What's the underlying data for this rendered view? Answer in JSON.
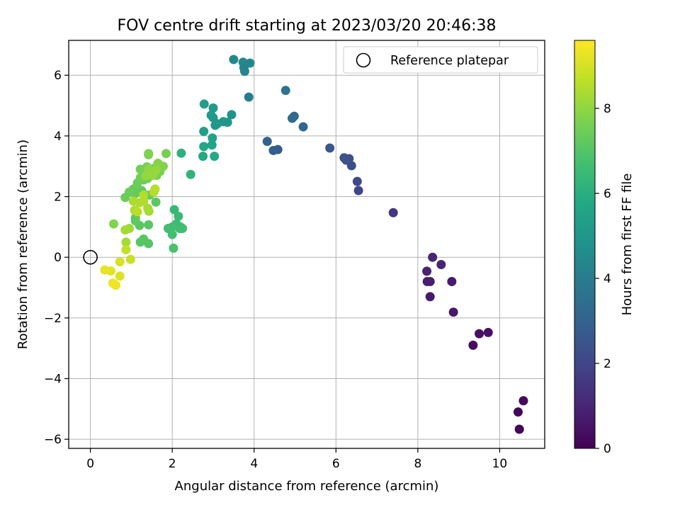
{
  "chart_data": {
    "type": "scatter",
    "title": "FOV centre drift starting at 2023/03/20 20:46:38",
    "xlabel": "Angular distance from reference (arcmin)",
    "ylabel": "Rotation from reference (arcmin)",
    "xlim": [
      -0.53,
      11.1
    ],
    "ylim": [
      -6.3,
      7.15
    ],
    "xticks": [
      0,
      2,
      4,
      6,
      8,
      10
    ],
    "xtick_labels": [
      "0",
      "2",
      "4",
      "6",
      "8",
      "10"
    ],
    "yticks": [
      -6,
      -4,
      -2,
      0,
      2,
      4,
      6
    ],
    "ytick_labels": [
      "−6",
      "−4",
      "−2",
      "0",
      "2",
      "4",
      "6"
    ],
    "grid": true,
    "legend": {
      "placement": "top-right",
      "entries": [
        "Reference platepar"
      ]
    },
    "reference_point": {
      "name": "Reference platepar",
      "x": 0,
      "y": 0,
      "marker": "open-circle"
    },
    "colorbar": {
      "label": "Hours from first FF file",
      "range": [
        0,
        9.6
      ],
      "ticks": [
        0,
        2,
        4,
        6,
        8
      ],
      "tick_labels": [
        "0",
        "2",
        "4",
        "6",
        "8"
      ],
      "colormap": "viridis"
    },
    "series": [
      {
        "color_by": "hours",
        "points": [
          {
            "x": 10.48,
            "y": -5.67,
            "c": 0.1
          },
          {
            "x": 10.45,
            "y": -5.1,
            "c": 0.15
          },
          {
            "x": 10.58,
            "y": -4.73,
            "c": 0.2
          },
          {
            "x": 9.35,
            "y": -2.9,
            "c": 0.35
          },
          {
            "x": 9.5,
            "y": -2.52,
            "c": 0.4
          },
          {
            "x": 9.72,
            "y": -2.48,
            "c": 0.45
          },
          {
            "x": 8.87,
            "y": -1.81,
            "c": 0.6
          },
          {
            "x": 8.3,
            "y": -1.3,
            "c": 0.7
          },
          {
            "x": 8.23,
            "y": -0.8,
            "c": 0.8
          },
          {
            "x": 8.3,
            "y": -0.8,
            "c": 0.8
          },
          {
            "x": 8.83,
            "y": -0.8,
            "c": 0.75
          },
          {
            "x": 8.22,
            "y": -0.46,
            "c": 0.9
          },
          {
            "x": 8.57,
            "y": -0.24,
            "c": 0.95
          },
          {
            "x": 8.36,
            "y": 0.0,
            "c": 1.0
          },
          {
            "x": 7.4,
            "y": 1.47,
            "c": 1.5
          },
          {
            "x": 6.55,
            "y": 2.2,
            "c": 2.0
          },
          {
            "x": 6.52,
            "y": 2.5,
            "c": 2.1
          },
          {
            "x": 6.38,
            "y": 3.02,
            "c": 2.2
          },
          {
            "x": 6.32,
            "y": 3.25,
            "c": 2.3
          },
          {
            "x": 6.2,
            "y": 3.28,
            "c": 2.35
          },
          {
            "x": 6.25,
            "y": 3.2,
            "c": 2.4
          },
          {
            "x": 5.85,
            "y": 3.6,
            "c": 2.6
          },
          {
            "x": 4.58,
            "y": 3.55,
            "c": 2.8
          },
          {
            "x": 4.47,
            "y": 3.52,
            "c": 2.9
          },
          {
            "x": 4.32,
            "y": 3.82,
            "c": 3.0
          },
          {
            "x": 5.2,
            "y": 4.3,
            "c": 3.2
          },
          {
            "x": 4.98,
            "y": 4.65,
            "c": 3.3
          },
          {
            "x": 4.93,
            "y": 4.58,
            "c": 3.35
          },
          {
            "x": 4.77,
            "y": 5.5,
            "c": 3.6
          },
          {
            "x": 3.87,
            "y": 5.28,
            "c": 4.0
          },
          {
            "x": 3.77,
            "y": 6.13,
            "c": 4.3
          },
          {
            "x": 3.75,
            "y": 6.25,
            "c": 4.35
          },
          {
            "x": 3.73,
            "y": 6.43,
            "c": 4.4
          },
          {
            "x": 3.9,
            "y": 6.4,
            "c": 4.4
          },
          {
            "x": 3.5,
            "y": 6.52,
            "c": 4.5
          },
          {
            "x": 3.45,
            "y": 4.7,
            "c": 4.9
          },
          {
            "x": 3.35,
            "y": 4.45,
            "c": 5.0
          },
          {
            "x": 3.25,
            "y": 4.47,
            "c": 5.05
          },
          {
            "x": 3.1,
            "y": 4.4,
            "c": 5.1
          },
          {
            "x": 3.05,
            "y": 4.35,
            "c": 5.1
          },
          {
            "x": 3.0,
            "y": 4.6,
            "c": 5.15
          },
          {
            "x": 2.95,
            "y": 4.68,
            "c": 5.2
          },
          {
            "x": 3.0,
            "y": 4.92,
            "c": 5.2
          },
          {
            "x": 2.78,
            "y": 5.05,
            "c": 5.25
          },
          {
            "x": 2.77,
            "y": 4.15,
            "c": 5.4
          },
          {
            "x": 2.98,
            "y": 3.93,
            "c": 5.5
          },
          {
            "x": 2.97,
            "y": 3.7,
            "c": 5.6
          },
          {
            "x": 2.77,
            "y": 3.65,
            "c": 5.7
          },
          {
            "x": 2.75,
            "y": 3.33,
            "c": 5.8
          },
          {
            "x": 3.03,
            "y": 3.33,
            "c": 5.8
          },
          {
            "x": 2.22,
            "y": 3.43,
            "c": 6.1
          },
          {
            "x": 2.45,
            "y": 2.73,
            "c": 6.2
          },
          {
            "x": 2.05,
            "y": 1.57,
            "c": 6.4
          },
          {
            "x": 2.15,
            "y": 1.35,
            "c": 6.5
          },
          {
            "x": 2.1,
            "y": 1.1,
            "c": 6.5
          },
          {
            "x": 2.2,
            "y": 1.0,
            "c": 6.55
          },
          {
            "x": 2.25,
            "y": 0.95,
            "c": 6.6
          },
          {
            "x": 2.18,
            "y": 0.95,
            "c": 6.6
          },
          {
            "x": 2.0,
            "y": 1.0,
            "c": 6.65
          },
          {
            "x": 1.9,
            "y": 0.95,
            "c": 6.65
          },
          {
            "x": 2.0,
            "y": 0.75,
            "c": 6.7
          },
          {
            "x": 2.03,
            "y": 0.3,
            "c": 6.8
          },
          {
            "x": 1.42,
            "y": 0.45,
            "c": 7.0
          },
          {
            "x": 1.22,
            "y": 0.5,
            "c": 7.05
          },
          {
            "x": 1.3,
            "y": 0.6,
            "c": 7.1
          },
          {
            "x": 1.42,
            "y": 1.07,
            "c": 7.1
          },
          {
            "x": 1.2,
            "y": 1.05,
            "c": 7.15
          },
          {
            "x": 1.1,
            "y": 1.2,
            "c": 7.2
          },
          {
            "x": 1.1,
            "y": 1.3,
            "c": 7.2
          },
          {
            "x": 1.6,
            "y": 1.82,
            "c": 7.15
          },
          {
            "x": 1.45,
            "y": 2.05,
            "c": 7.3
          },
          {
            "x": 1.35,
            "y": 2.05,
            "c": 7.3
          },
          {
            "x": 1.25,
            "y": 2.2,
            "c": 7.25
          },
          {
            "x": 1.1,
            "y": 2.1,
            "c": 7.35
          },
          {
            "x": 1.05,
            "y": 2.25,
            "c": 7.35
          },
          {
            "x": 0.95,
            "y": 2.15,
            "c": 7.4
          },
          {
            "x": 0.85,
            "y": 1.97,
            "c": 7.4
          },
          {
            "x": 1.15,
            "y": 2.45,
            "c": 7.4
          },
          {
            "x": 1.3,
            "y": 2.55,
            "c": 7.45
          },
          {
            "x": 1.22,
            "y": 2.62,
            "c": 7.5
          },
          {
            "x": 1.4,
            "y": 2.6,
            "c": 7.5
          },
          {
            "x": 1.45,
            "y": 2.75,
            "c": 7.5
          },
          {
            "x": 1.22,
            "y": 2.9,
            "c": 7.55
          },
          {
            "x": 1.38,
            "y": 2.98,
            "c": 7.55
          },
          {
            "x": 1.55,
            "y": 2.93,
            "c": 7.6
          },
          {
            "x": 1.62,
            "y": 2.7,
            "c": 7.6
          },
          {
            "x": 1.7,
            "y": 2.83,
            "c": 7.65
          },
          {
            "x": 1.85,
            "y": 3.42,
            "c": 7.65
          },
          {
            "x": 1.42,
            "y": 3.38,
            "c": 7.7
          },
          {
            "x": 1.42,
            "y": 3.42,
            "c": 7.75
          },
          {
            "x": 1.78,
            "y": 3.0,
            "c": 7.8
          },
          {
            "x": 1.65,
            "y": 3.1,
            "c": 7.85
          },
          {
            "x": 1.55,
            "y": 2.8,
            "c": 7.9
          },
          {
            "x": 1.48,
            "y": 2.78,
            "c": 8.0
          },
          {
            "x": 1.42,
            "y": 2.9,
            "c": 8.0
          },
          {
            "x": 1.35,
            "y": 2.68,
            "c": 8.05
          },
          {
            "x": 1.52,
            "y": 2.7,
            "c": 8.1
          },
          {
            "x": 1.6,
            "y": 2.88,
            "c": 8.1
          },
          {
            "x": 0.57,
            "y": 1.1,
            "c": 7.8
          },
          {
            "x": 0.95,
            "y": 0.95,
            "c": 8.2
          },
          {
            "x": 0.85,
            "y": 0.9,
            "c": 8.3
          },
          {
            "x": 0.87,
            "y": 0.5,
            "c": 8.3
          },
          {
            "x": 1.08,
            "y": 1.55,
            "c": 8.4
          },
          {
            "x": 1.43,
            "y": 1.52,
            "c": 8.3
          },
          {
            "x": 1.4,
            "y": 1.62,
            "c": 8.35
          },
          {
            "x": 1.2,
            "y": 1.8,
            "c": 8.4
          },
          {
            "x": 1.05,
            "y": 1.85,
            "c": 8.4
          },
          {
            "x": 1.3,
            "y": 1.85,
            "c": 8.45
          },
          {
            "x": 1.3,
            "y": 2.05,
            "c": 8.5
          },
          {
            "x": 1.55,
            "y": 2.15,
            "c": 8.5
          },
          {
            "x": 1.58,
            "y": 2.25,
            "c": 8.55
          },
          {
            "x": 1.15,
            "y": 1.5,
            "c": 8.6
          },
          {
            "x": 0.87,
            "y": 0.25,
            "c": 8.7
          },
          {
            "x": 0.98,
            "y": -0.07,
            "c": 8.8
          },
          {
            "x": 0.72,
            "y": -0.15,
            "c": 9.0
          },
          {
            "x": 0.72,
            "y": -0.62,
            "c": 9.1
          },
          {
            "x": 0.5,
            "y": -0.45,
            "c": 9.2
          },
          {
            "x": 0.35,
            "y": -0.42,
            "c": 9.25
          },
          {
            "x": 0.55,
            "y": -0.85,
            "c": 9.3
          },
          {
            "x": 0.62,
            "y": -0.92,
            "c": 9.35
          },
          {
            "x": 0.58,
            "y": -0.88,
            "c": 9.4
          }
        ]
      }
    ]
  }
}
